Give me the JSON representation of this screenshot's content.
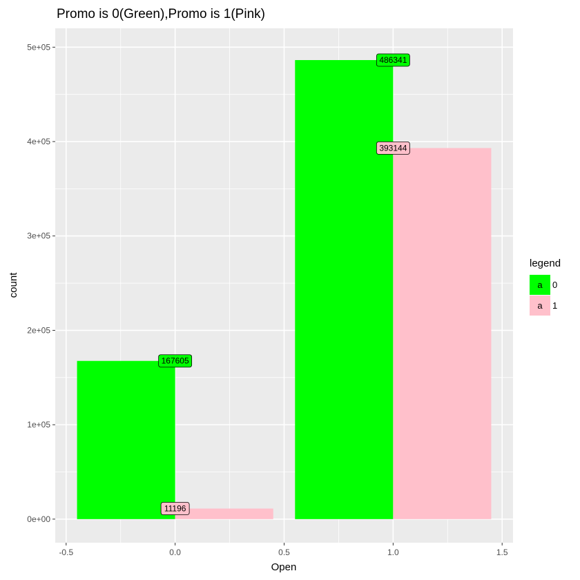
{
  "chart_data": {
    "type": "bar",
    "title": "Promo is 0(Green),Promo is 1(Pink)",
    "xlabel": "Open",
    "ylabel": "count",
    "xlim": [
      -0.55,
      1.55
    ],
    "ylim": [
      -25000,
      520000
    ],
    "x_ticks": [
      -0.5,
      0.0,
      0.5,
      1.0,
      1.5
    ],
    "x_tick_labels": [
      "-0.5",
      "0.0",
      "0.5",
      "1.0",
      "1.5"
    ],
    "y_ticks": [
      0,
      100000,
      200000,
      300000,
      400000,
      500000
    ],
    "y_tick_labels": [
      "0e+00",
      "1e+05",
      "2e+05",
      "3e+05",
      "4e+05",
      "5e+05"
    ],
    "grid": true,
    "legend": {
      "title": "legend",
      "position": "right",
      "key_glyph": "a",
      "entries": [
        {
          "label": "0",
          "color": "#00ff00"
        },
        {
          "label": "1",
          "color": "#ffc0cb"
        }
      ]
    },
    "series": [
      {
        "color": "#00ff00",
        "bars": [
          {
            "xmin": -0.45,
            "xmax": 0.0,
            "value": 167605,
            "label": "167605"
          },
          {
            "xmin": 0.55,
            "xmax": 1.0,
            "value": 486341,
            "label": "486341"
          }
        ]
      },
      {
        "color": "#ffc0cb",
        "bars": [
          {
            "xmin": 0.0,
            "xmax": 0.45,
            "value": 11196,
            "label": "11196"
          },
          {
            "xmin": 1.0,
            "xmax": 1.45,
            "value": 393144,
            "label": "393144"
          }
        ]
      }
    ]
  }
}
